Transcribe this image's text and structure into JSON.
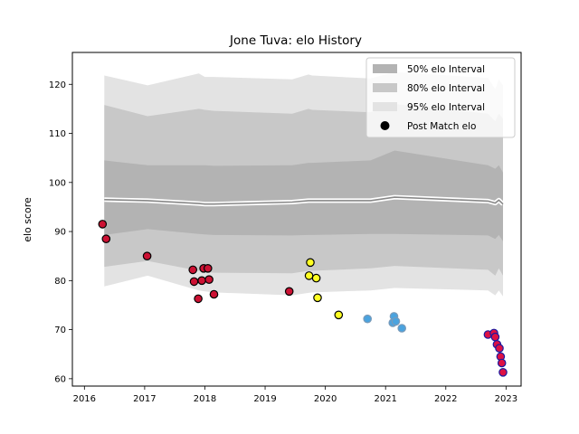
{
  "chart_data": {
    "type": "scatter",
    "title": "Jone Tuva: elo History",
    "xlabel": "",
    "ylabel": "elo score",
    "xlim": [
      2015.8,
      2023.25
    ],
    "ylim": [
      58.5,
      126.5
    ],
    "xticks": [
      2016,
      2017,
      2018,
      2019,
      2020,
      2021,
      2022,
      2023
    ],
    "yticks": [
      60,
      70,
      80,
      90,
      100,
      110,
      120
    ],
    "grid": false,
    "legend_position": "top-right",
    "legend": [
      {
        "label": "50% elo Interval",
        "kind": "band",
        "color": "#b3b3b3"
      },
      {
        "label": "80% elo Interval",
        "kind": "band",
        "color": "#c8c8c8"
      },
      {
        "label": "95% elo Interval",
        "kind": "band",
        "color": "#e3e3e3"
      },
      {
        "label": "Post Match elo",
        "kind": "marker",
        "color": "#000000"
      }
    ],
    "band_x": [
      2016.33,
      2017.05,
      2017.9,
      2018.0,
      2018.15,
      2019.45,
      2019.72,
      2019.78,
      2020.75,
      2021.15,
      2022.7,
      2022.82,
      2022.88,
      2022.95
    ],
    "bands": [
      {
        "name": "95% elo Interval",
        "color": "#e3e3e3",
        "upper": [
          121.8,
          119.8,
          122.2,
          121.5,
          121.5,
          121.0,
          122.0,
          121.8,
          121.2,
          122.5,
          121.3,
          119.0,
          121.0,
          119.8
        ],
        "lower": [
          78.8,
          81.0,
          78.0,
          77.8,
          77.6,
          77.0,
          77.5,
          77.6,
          78.0,
          78.5,
          78.0,
          77.0,
          78.0,
          76.8
        ]
      },
      {
        "name": "80% elo Interval",
        "color": "#c8c8c8",
        "upper": [
          115.8,
          113.5,
          115.0,
          114.8,
          114.6,
          114.0,
          115.0,
          114.8,
          114.3,
          116.0,
          114.0,
          112.5,
          114.0,
          113.0
        ],
        "lower": [
          82.8,
          84.0,
          82.0,
          81.8,
          81.6,
          81.5,
          82.0,
          82.0,
          82.5,
          83.0,
          82.2,
          81.0,
          82.5,
          81.0
        ]
      },
      {
        "name": "50% elo Interval",
        "color": "#b3b3b3",
        "upper": [
          104.5,
          103.5,
          103.5,
          103.5,
          103.4,
          103.5,
          104.0,
          104.0,
          104.5,
          106.5,
          103.5,
          102.8,
          103.5,
          102.0
        ],
        "lower": [
          89.3,
          90.5,
          89.5,
          89.4,
          89.3,
          89.2,
          89.3,
          89.3,
          89.5,
          89.5,
          89.2,
          88.5,
          89.3,
          88.0
        ]
      }
    ],
    "mean_line": [
      96.5,
      96.3,
      95.7,
      95.6,
      95.6,
      96.0,
      96.3,
      96.3,
      96.3,
      97.0,
      96.2,
      95.8,
      96.4,
      95.6
    ],
    "series": [
      {
        "name": "Post Match elo",
        "color_group": "red",
        "x": [
          2016.3,
          2016.36,
          2017.04,
          2017.8,
          2017.82,
          2017.89,
          2017.95,
          2017.98,
          2018.05,
          2018.07,
          2018.15,
          2019.4
        ],
        "y": [
          91.5,
          88.5,
          85.0,
          82.2,
          79.8,
          76.3,
          80.0,
          82.5,
          82.5,
          80.2,
          77.2,
          77.8
        ]
      },
      {
        "color_group": "yellow",
        "x": [
          2019.73,
          2019.75,
          2019.85,
          2019.87,
          2020.22
        ],
        "y": [
          81.0,
          83.7,
          80.5,
          76.5,
          73.0
        ]
      },
      {
        "color_group": "blue",
        "x": [
          2020.7,
          2021.12,
          2021.14,
          2021.17,
          2021.27
        ],
        "y": [
          72.2,
          71.4,
          72.7,
          71.7,
          70.3
        ]
      },
      {
        "color_group": "purple",
        "x": [
          2022.7,
          2022.8,
          2022.82,
          2022.85,
          2022.89,
          2022.91,
          2022.93,
          2022.95
        ],
        "y": [
          69.0,
          69.3,
          68.5,
          67.0,
          66.2,
          64.5,
          63.2,
          61.3
        ]
      }
    ],
    "marker_colors": {
      "red": {
        "fill": "#cc1133",
        "edge": "#000000"
      },
      "yellow": {
        "fill": "#ffff22",
        "edge": "#000000"
      },
      "blue": {
        "fill": "#4aa3df",
        "edge": "#7a9ab8"
      },
      "purple": {
        "fill": "#dd1144",
        "edge": "#1a1aa0"
      }
    },
    "mean_line_color": "#888888",
    "mean_halo_color": "#ffffff"
  }
}
